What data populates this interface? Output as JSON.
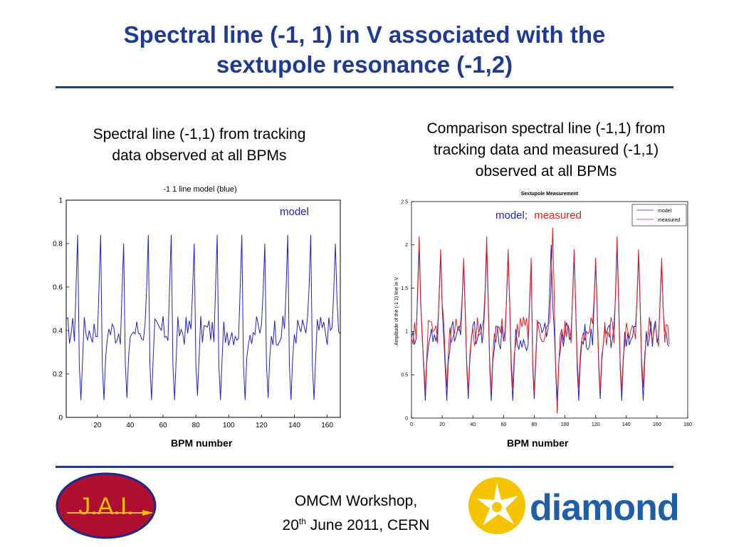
{
  "slide": {
    "title_line1": "Spectral line (-1, 1) in V associated with the",
    "title_line2": "sextupole resonance (-1,2)",
    "left_caption_line1": "Spectral line (-1,1) from tracking",
    "left_caption_line2": "data observed at all BPMs",
    "right_caption_line1": "Comparison spectral line (-1,1) from",
    "right_caption_line2": "tracking data and measured (-1,1)",
    "right_caption_line3": "observed at all BPMs",
    "left_xlabel": "BPM number",
    "right_xlabel": "BPM number",
    "left_overlay_label": "model",
    "right_overlay_model": "model;",
    "right_overlay_measured": "measured"
  },
  "footer": {
    "workshop": "OMCM Workshop,",
    "date_day": "20",
    "date_sup": "th",
    "date_rest": " June 2011, CERN",
    "jai_logo_text": "J.A.I.",
    "diamond_logo_text": "diamond"
  },
  "colors": {
    "title": "#1f3a93",
    "model": "#2020c8",
    "measured": "#e02020",
    "jai_bg": "#b01030",
    "jai_ring": "#1a2a8a",
    "diamond_star": "#f5c400",
    "diamond_text": "#1f5fa8"
  },
  "chart_data": [
    {
      "type": "line",
      "title": "-1 1 line model (blue)",
      "xlabel": "BPM number",
      "ylabel": "",
      "xlim": [
        1,
        168
      ],
      "ylim": [
        0,
        1
      ],
      "xticks": [
        20,
        40,
        60,
        80,
        100,
        120,
        140,
        160
      ],
      "yticks": [
        0,
        0.2,
        0.4,
        0.6,
        0.8,
        1
      ],
      "grid": false,
      "series": [
        {
          "name": "model",
          "peaks": [
            8,
            22,
            36,
            51,
            65,
            79,
            93,
            108,
            122,
            136,
            150,
            165
          ],
          "peak_values": [
            0.84,
            0.84,
            0.8,
            0.84,
            0.84,
            0.8,
            0.84,
            0.84,
            0.8,
            0.84,
            0.84,
            0.8
          ],
          "minima": [
            10,
            24,
            38,
            53,
            67,
            81,
            95,
            110,
            124,
            138,
            152
          ],
          "min_values": [
            0.08,
            0.08,
            0.09,
            0.08,
            0.08,
            0.1,
            0.08,
            0.08,
            0.09,
            0.08,
            0.08
          ],
          "baseline": 0.4
        }
      ]
    },
    {
      "type": "line",
      "title": "Sextupole Measurement",
      "xlabel": "BPM number",
      "ylabel": "Amplitude of the (-1 1) line in V",
      "xlim": [
        0,
        180
      ],
      "ylim": [
        0,
        2.5
      ],
      "xticks": [
        0,
        20,
        40,
        60,
        80,
        100,
        120,
        140,
        160,
        180
      ],
      "yticks": [
        0,
        0.5,
        1,
        1.5,
        2,
        2.5
      ],
      "grid": false,
      "legend": "top-right",
      "series": [
        {
          "name": "model",
          "peaks": [
            5,
            19,
            34,
            49,
            63,
            78,
            91,
            106,
            120,
            134,
            148,
            163
          ],
          "peak_values": [
            2.0,
            1.9,
            1.8,
            2.0,
            1.9,
            1.8,
            2.0,
            1.9,
            1.8,
            2.0,
            1.9,
            1.8
          ],
          "minima": [
            9,
            23,
            37,
            52,
            66,
            80,
            95,
            109,
            123,
            137,
            151
          ],
          "min_values": [
            0.2,
            0.2,
            0.22,
            0.2,
            0.2,
            0.22,
            0.2,
            0.2,
            0.22,
            0.2,
            0.2
          ],
          "baseline": 0.95
        },
        {
          "name": "measured",
          "peaks": [
            5,
            19,
            34,
            49,
            63,
            78,
            92,
            106,
            120,
            134,
            148,
            163
          ],
          "peak_values": [
            2.1,
            1.95,
            1.85,
            2.1,
            1.95,
            1.85,
            2.2,
            1.95,
            1.85,
            2.1,
            1.95,
            1.85
          ],
          "minima": [
            9,
            23,
            37,
            52,
            66,
            80,
            95,
            109,
            123,
            137,
            151
          ],
          "min_values": [
            0.3,
            0.35,
            0.3,
            0.3,
            0.35,
            0.3,
            0.05,
            0.35,
            0.3,
            0.3,
            0.35
          ],
          "baseline": 1.0
        }
      ]
    }
  ]
}
